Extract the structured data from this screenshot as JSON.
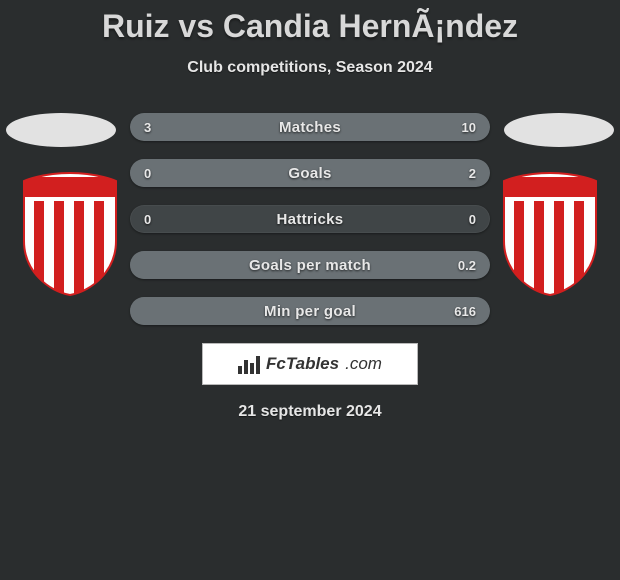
{
  "header": {
    "title": "Ruiz vs Candia HernÃ¡ndez",
    "subtitle": "Club competitions, Season 2024"
  },
  "badge": {
    "stripe_color": "#d21f1f",
    "background_color": "#ffffff",
    "top_band_color": "#d21f1f",
    "shape": "shield"
  },
  "ellipse_color": "#e2e2e2",
  "bars": {
    "track_color": "#404547",
    "fill_left_color": "#6a7175",
    "fill_right_color": "#6a7175",
    "items": [
      {
        "label": "Matches",
        "left": "3",
        "right": "10",
        "left_pct": 23,
        "right_pct": 77
      },
      {
        "label": "Goals",
        "left": "0",
        "right": "2",
        "left_pct": 0,
        "right_pct": 100
      },
      {
        "label": "Hattricks",
        "left": "0",
        "right": "0",
        "left_pct": 0,
        "right_pct": 0
      },
      {
        "label": "Goals per match",
        "left": "",
        "right": "0.2",
        "left_pct": 0,
        "right_pct": 100
      },
      {
        "label": "Min per goal",
        "left": "",
        "right": "616",
        "left_pct": 0,
        "right_pct": 100
      }
    ]
  },
  "brand": {
    "icon": "bar-chart-icon",
    "name": "FcTables",
    "domain": ".com"
  },
  "date": "21 september 2024"
}
